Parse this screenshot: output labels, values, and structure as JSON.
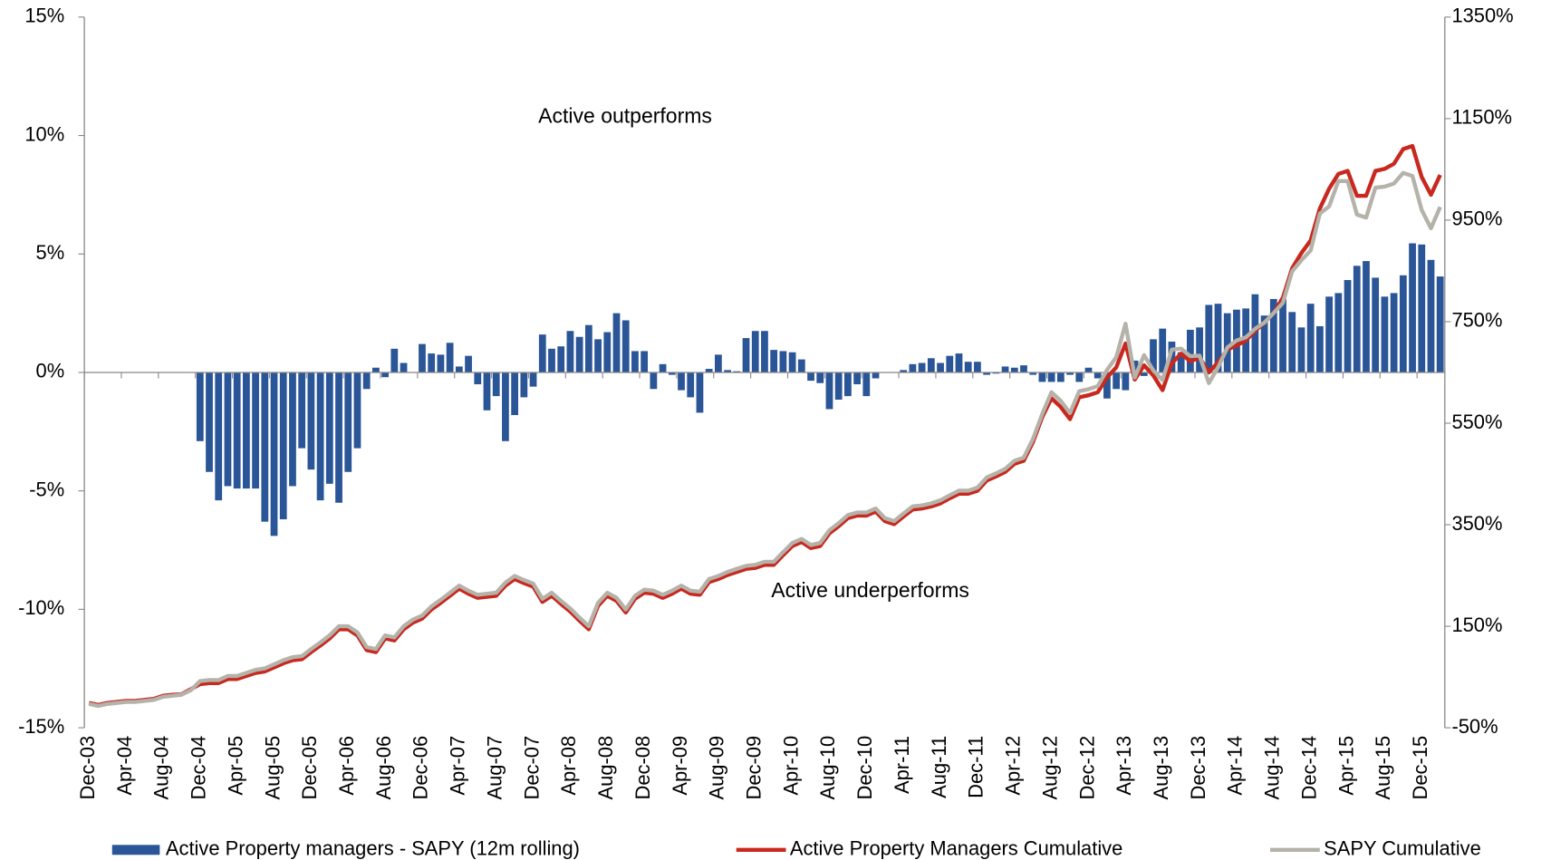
{
  "chart_data": {
    "type": "combo",
    "annotations": [
      "Active outperforms",
      "Active underperforms"
    ],
    "categories": [
      "Dec-03",
      null,
      null,
      null,
      "Apr-04",
      null,
      null,
      null,
      "Aug-04",
      null,
      null,
      null,
      "Dec-04",
      null,
      null,
      null,
      "Apr-05",
      null,
      null,
      null,
      "Aug-05",
      null,
      null,
      null,
      "Dec-05",
      null,
      null,
      null,
      "Apr-06",
      null,
      null,
      null,
      "Aug-06",
      null,
      null,
      null,
      "Dec-06",
      null,
      null,
      null,
      "Apr-07",
      null,
      null,
      null,
      "Aug-07",
      null,
      null,
      null,
      "Dec-07",
      null,
      null,
      null,
      "Apr-08",
      null,
      null,
      null,
      "Aug-08",
      null,
      null,
      null,
      "Dec-08",
      null,
      null,
      null,
      "Apr-09",
      null,
      null,
      null,
      "Aug-09",
      null,
      null,
      null,
      "Dec-09",
      null,
      null,
      null,
      "Apr-10",
      null,
      null,
      null,
      "Aug-10",
      null,
      null,
      null,
      "Dec-10",
      null,
      null,
      null,
      "Apr-11",
      null,
      null,
      null,
      "Aug-11",
      null,
      null,
      null,
      "Dec-11",
      null,
      null,
      null,
      "Apr-12",
      null,
      null,
      null,
      "Aug-12",
      null,
      null,
      null,
      "Dec-12",
      null,
      null,
      null,
      "Apr-13",
      null,
      null,
      null,
      "Aug-13",
      null,
      null,
      null,
      "Dec-13",
      null,
      null,
      null,
      "Apr-14",
      null,
      null,
      null,
      "Aug-14",
      null,
      null,
      null,
      "Dec-14",
      null,
      null,
      null,
      "Apr-15",
      null,
      null,
      null,
      "Aug-15",
      null,
      null,
      null,
      "Dec-15",
      null,
      null
    ],
    "ylim": [
      -15,
      15
    ],
    "yticks": [
      {
        "value": -15,
        "label": "-15%"
      },
      {
        "value": -10,
        "label": "-10%"
      },
      {
        "value": -5,
        "label": "-5%"
      },
      {
        "value": 0,
        "label": "0%"
      },
      {
        "value": 5,
        "label": "5%"
      },
      {
        "value": 10,
        "label": "10%"
      },
      {
        "value": 15,
        "label": "15%"
      }
    ],
    "y2lim": [
      -50,
      1350
    ],
    "y2ticks": [
      {
        "value": -50,
        "label": "-50%"
      },
      {
        "value": 150,
        "label": "150%"
      },
      {
        "value": 350,
        "label": "350%"
      },
      {
        "value": 550,
        "label": "550%"
      },
      {
        "value": 750,
        "label": "750%"
      },
      {
        "value": 950,
        "label": "950%"
      },
      {
        "value": 1150,
        "label": "1150%"
      },
      {
        "value": 1350,
        "label": "1350%"
      }
    ],
    "series": [
      {
        "name": "Active Property managers - SAPY (12m rolling)",
        "type": "bar",
        "color": "#2a5597",
        "values": [
          null,
          null,
          null,
          null,
          null,
          null,
          null,
          null,
          null,
          null,
          null,
          null,
          -2.9,
          -4.2,
          -5.4,
          -4.8,
          -4.9,
          -4.9,
          -4.9,
          -6.3,
          -6.9,
          -6.2,
          -4.8,
          -3.2,
          -4.1,
          -5.4,
          -4.7,
          -5.5,
          -4.2,
          -3.2,
          -0.7,
          0.2,
          -0.2,
          1.0,
          0.4,
          0.0,
          1.2,
          0.8,
          0.75,
          1.25,
          0.25,
          0.7,
          -0.5,
          -1.6,
          -1.0,
          -2.9,
          -1.8,
          -1.05,
          -0.6,
          1.6,
          1.0,
          1.1,
          1.75,
          1.5,
          2.0,
          1.4,
          1.7,
          2.5,
          2.2,
          0.9,
          0.9,
          -0.7,
          0.35,
          -0.1,
          -0.75,
          -1.05,
          -1.7,
          0.15,
          0.75,
          0.1,
          0.05,
          1.45,
          1.75,
          1.75,
          0.95,
          0.9,
          0.85,
          0.55,
          -0.35,
          -0.45,
          -1.55,
          -1.15,
          -1.0,
          -0.5,
          -1.0,
          -0.25,
          0.0,
          0.0,
          0.1,
          0.35,
          0.4,
          0.6,
          0.4,
          0.7,
          0.8,
          0.45,
          0.45,
          -0.1,
          -0.05,
          0.25,
          0.2,
          0.3,
          -0.1,
          -0.4,
          -0.4,
          -0.4,
          -0.1,
          -0.4,
          0.2,
          -0.25,
          -1.1,
          -0.7,
          -0.75,
          0.5,
          -0.15,
          1.4,
          1.85,
          1.3,
          0.85,
          1.8,
          1.9,
          2.85,
          2.9,
          2.5,
          2.65,
          2.7,
          3.3,
          2.4,
          3.1,
          3.1,
          2.55,
          1.9,
          2.9,
          1.95,
          3.2,
          3.35,
          3.9,
          4.5,
          4.7,
          4.0,
          3.2,
          3.35,
          4.1,
          5.45,
          5.4,
          4.75,
          4.05
        ]
      },
      {
        "name": "Active Property Managers Cumulative",
        "type": "line",
        "axis": "y2",
        "color": "#c8281e",
        "values": [
          -1,
          -5,
          -1,
          1,
          3,
          3,
          5,
          7,
          13,
          15,
          16,
          26,
          36,
          38,
          38,
          46,
          46,
          52,
          58,
          61,
          69,
          77,
          83,
          85,
          99,
          112,
          126,
          144,
          144,
          132,
          103,
          99,
          126,
          122,
          144,
          157,
          165,
          183,
          196,
          210,
          224,
          214,
          206,
          208,
          210,
          230,
          243,
          235,
          228,
          198,
          210,
          194,
          179,
          161,
          144,
          190,
          210,
          200,
          177,
          204,
          216,
          214,
          206,
          214,
          224,
          214,
          212,
          237,
          243,
          251,
          257,
          263,
          265,
          271,
          271,
          290,
          308,
          316,
          304,
          308,
          333,
          347,
          363,
          368,
          368,
          376,
          357,
          351,
          366,
          380,
          382,
          386,
          392,
          402,
          411,
          411,
          417,
          437,
          445,
          454,
          470,
          476,
          513,
          562,
          599,
          582,
          558,
          601,
          605,
          611,
          640,
          660,
          707,
          636,
          664,
          644,
          615,
          668,
          687,
          672,
          679,
          650,
          670,
          695,
          703,
          713,
          732,
          748,
          767,
          797,
          855,
          885,
          910,
          973,
          1012,
          1041,
          1047,
          998,
          998,
          1047,
          1051,
          1061,
          1090,
          1096,
          1035,
          1000,
          1039
        ]
      },
      {
        "name": "SAPY Cumulative",
        "type": "line",
        "axis": "y2",
        "color": "#b5b2aa",
        "values": [
          -3,
          -7,
          -3,
          -1,
          1,
          1,
          3,
          5,
          11,
          13,
          15,
          24,
          42,
          44,
          44,
          52,
          52,
          58,
          64,
          67,
          75,
          83,
          89,
          91,
          105,
          118,
          132,
          150,
          150,
          138,
          109,
          105,
          132,
          128,
          150,
          163,
          171,
          189,
          202,
          216,
          230,
          220,
          212,
          214,
          216,
          236,
          249,
          241,
          234,
          204,
          216,
          200,
          185,
          167,
          150,
          196,
          216,
          206,
          183,
          210,
          222,
          220,
          212,
          220,
          230,
          220,
          218,
          243,
          249,
          257,
          263,
          269,
          271,
          277,
          277,
          296,
          314,
          322,
          310,
          314,
          339,
          353,
          369,
          374,
          374,
          382,
          363,
          357,
          372,
          386,
          388,
          392,
          398,
          408,
          417,
          417,
          423,
          443,
          451,
          460,
          476,
          482,
          519,
          568,
          611,
          594,
          570,
          613,
          617,
          623,
          655,
          680,
          746,
          640,
          684,
          654,
          635,
          695,
          697,
          682,
          683,
          629,
          660,
          699,
          713,
          719,
          736,
          748,
          767,
          787,
          849,
          871,
          890,
          963,
          977,
          1027,
          1027,
          961,
          955,
          1014,
          1016,
          1022,
          1043,
          1037,
          970,
          934,
          976
        ]
      }
    ]
  }
}
